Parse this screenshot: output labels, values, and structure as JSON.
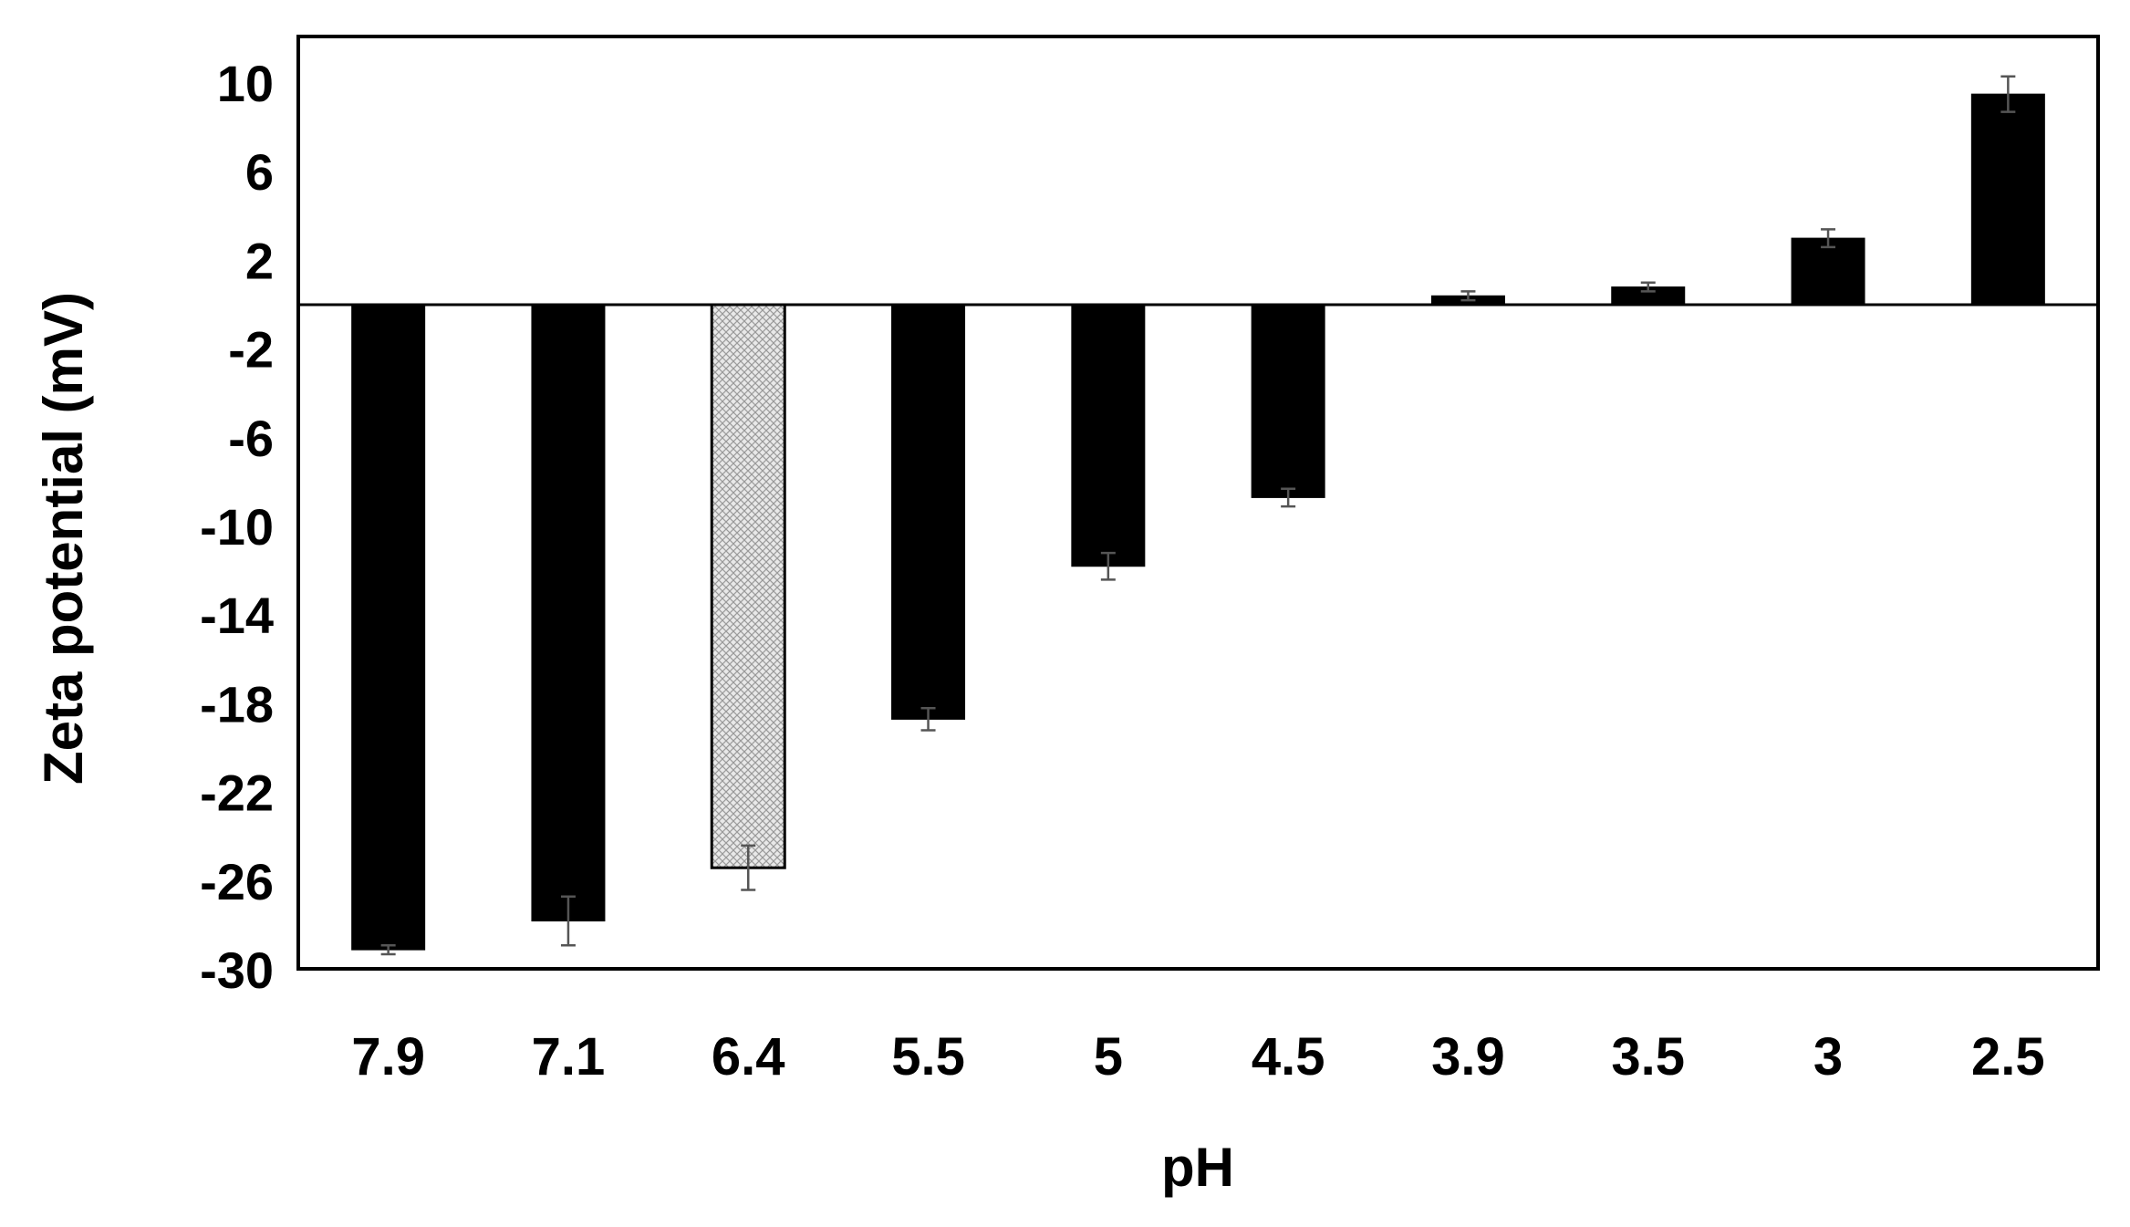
{
  "chart_data": {
    "type": "bar",
    "title": "",
    "xlabel": "pH",
    "ylabel": "Zeta potential (mV)",
    "categories": [
      "7.9",
      "7.1",
      "6.4",
      "5.5",
      "5",
      "4.5",
      "3.9",
      "3.5",
      "3",
      "2.5"
    ],
    "values": [
      -29.1,
      -27.8,
      -25.4,
      -18.7,
      -11.8,
      -8.7,
      0.4,
      0.8,
      3.0,
      9.5
    ],
    "error": [
      0.2,
      1.1,
      1.0,
      0.5,
      0.6,
      0.4,
      0.2,
      0.2,
      0.4,
      0.8
    ],
    "highlighted_category": "6.4",
    "ylim": [
      -30,
      12
    ],
    "yticks": [
      10,
      6,
      2,
      -2,
      -6,
      -10,
      -14,
      -18,
      -22,
      -26,
      -30
    ],
    "grid": false,
    "legend": "none",
    "colors": {
      "bar": "#000000",
      "highlight_fill": "#e4e4e4",
      "error_bar": "#555555",
      "axis": "#000000"
    }
  }
}
